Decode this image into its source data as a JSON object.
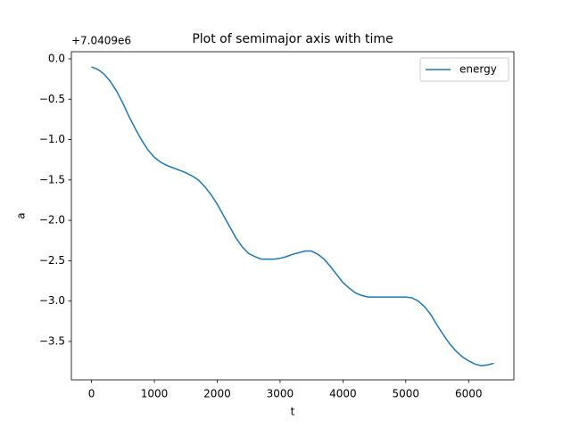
{
  "chart_data": {
    "type": "line",
    "title": "Plot of semimajor axis with time",
    "xlabel": "t",
    "ylabel": "a",
    "offset_text": "+7.0409e6",
    "x": [
      0,
      100,
      200,
      300,
      400,
      500,
      600,
      700,
      800,
      900,
      1000,
      1100,
      1200,
      1300,
      1400,
      1500,
      1600,
      1700,
      1800,
      1900,
      2000,
      2100,
      2200,
      2300,
      2400,
      2500,
      2600,
      2700,
      2800,
      2900,
      3000,
      3100,
      3200,
      3300,
      3400,
      3500,
      3600,
      3700,
      3800,
      3900,
      4000,
      4100,
      4200,
      4300,
      4400,
      4500,
      4600,
      4700,
      4800,
      4900,
      5000,
      5100,
      5200,
      5300,
      5400,
      5500,
      5600,
      5700,
      5800,
      5900,
      6000,
      6100,
      6200,
      6300,
      6400
    ],
    "series": [
      {
        "name": "energy",
        "color": "#1f77b4",
        "values": [
          -0.1,
          -0.13,
          -0.19,
          -0.28,
          -0.4,
          -0.55,
          -0.72,
          -0.87,
          -1.01,
          -1.13,
          -1.22,
          -1.28,
          -1.32,
          -1.35,
          -1.38,
          -1.41,
          -1.45,
          -1.5,
          -1.58,
          -1.68,
          -1.8,
          -1.94,
          -2.08,
          -2.22,
          -2.33,
          -2.41,
          -2.45,
          -2.48,
          -2.48,
          -2.48,
          -2.47,
          -2.45,
          -2.42,
          -2.4,
          -2.38,
          -2.38,
          -2.42,
          -2.48,
          -2.57,
          -2.67,
          -2.77,
          -2.84,
          -2.9,
          -2.93,
          -2.95,
          -2.95,
          -2.95,
          -2.95,
          -2.95,
          -2.95,
          -2.95,
          -2.96,
          -3.0,
          -3.07,
          -3.17,
          -3.3,
          -3.42,
          -3.53,
          -3.62,
          -3.69,
          -3.74,
          -3.78,
          -3.8,
          -3.79,
          -3.77
        ]
      }
    ],
    "xlim": [
      -320,
      6720
    ],
    "ylim": [
      -3.975,
      0.088
    ],
    "xticks": [
      0,
      1000,
      2000,
      3000,
      4000,
      5000,
      6000
    ],
    "yticks": [
      {
        "value": 0,
        "label": "0.0"
      },
      {
        "value": -0.5,
        "label": "−0.5"
      },
      {
        "value": -1.0,
        "label": "−1.0"
      },
      {
        "value": -1.5,
        "label": "−1.5"
      },
      {
        "value": -2.0,
        "label": "−2.0"
      },
      {
        "value": -2.5,
        "label": "−2.5"
      },
      {
        "value": -3.0,
        "label": "−3.0"
      },
      {
        "value": -3.5,
        "label": "−3.5"
      }
    ],
    "legend": "upper right"
  }
}
